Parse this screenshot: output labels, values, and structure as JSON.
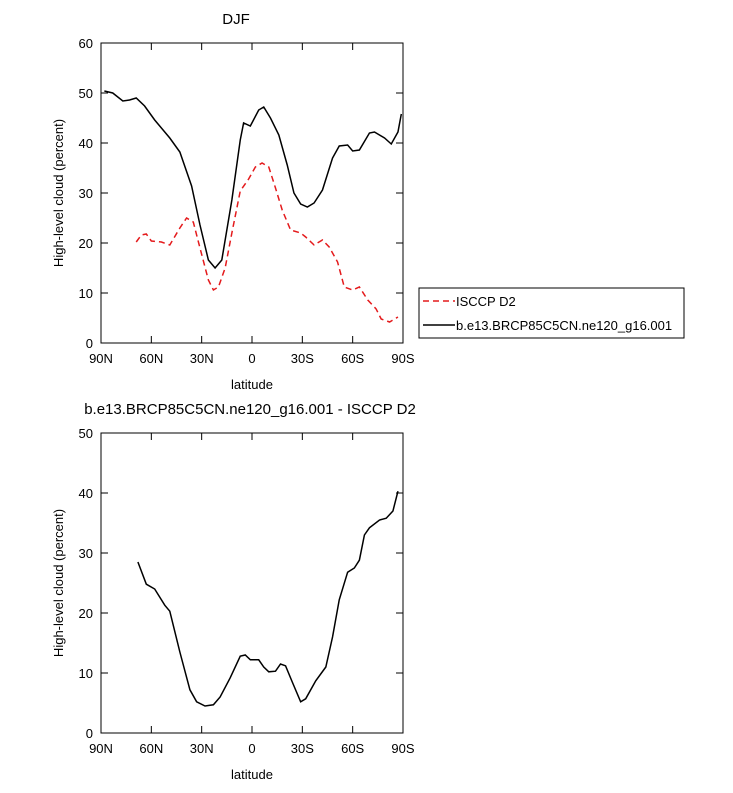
{
  "chart_data": [
    {
      "type": "line",
      "title": "DJF",
      "xlabel": "latitude",
      "ylabel": "High-level cloud (percent)",
      "xlim": [
        90,
        -90
      ],
      "ylim": [
        0,
        60
      ],
      "xticks": [
        {
          "value": 90,
          "label": "90N"
        },
        {
          "value": 60,
          "label": "60N"
        },
        {
          "value": 30,
          "label": "30N"
        },
        0,
        {
          "value": -30,
          "label": "30S"
        },
        {
          "value": -60,
          "label": "60S"
        },
        {
          "value": -90,
          "label": "90S"
        }
      ],
      "yticks": [
        0,
        10,
        20,
        30,
        40,
        50,
        60
      ],
      "legend": "right",
      "series": [
        {
          "name": "ISCCP D2",
          "color": "#e41a1c",
          "dash": true,
          "x": [
            69,
            66,
            63,
            60,
            54,
            49,
            43,
            39,
            35,
            31,
            26,
            23,
            20,
            16,
            12,
            7,
            2,
            -2,
            -6,
            -10,
            -14,
            -18,
            -23,
            -29,
            -32,
            -37,
            -42,
            -46,
            -51,
            -55,
            -60,
            -64,
            -69,
            -74,
            -77,
            -82,
            -87
          ],
          "values": [
            20.2,
            21.6,
            21.8,
            20.4,
            20.2,
            19.6,
            23,
            25,
            24.2,
            19,
            12.6,
            10.6,
            11.2,
            15,
            22,
            30.4,
            32.8,
            35.2,
            36,
            35.2,
            31,
            26.6,
            22.6,
            22,
            21.2,
            19.6,
            20.6,
            19.2,
            16.2,
            11.2,
            10.6,
            11.2,
            8.6,
            6.8,
            4.8,
            4.2,
            5.2
          ]
        },
        {
          "name": "b.e13.BRCP85C5CN.ne120_g16.001",
          "color": "#000000",
          "dash": false,
          "x": [
            88,
            83,
            77,
            73,
            69,
            64,
            58,
            49,
            43,
            36,
            31,
            26,
            22,
            18,
            12,
            7,
            5,
            1,
            -4,
            -7,
            -11,
            -16,
            -21,
            -25,
            -29,
            -33,
            -37,
            -42,
            -48,
            -52,
            -57,
            -60,
            -64,
            -70,
            -73,
            -79,
            -83,
            -87,
            -89
          ],
          "values": [
            50.4,
            50,
            48.4,
            48.6,
            49,
            47.4,
            44.6,
            41,
            38.2,
            31.4,
            23.6,
            16.6,
            15,
            16.6,
            28.6,
            40.6,
            44,
            43.4,
            46.6,
            47.2,
            45,
            41.6,
            35.6,
            30,
            27.8,
            27.2,
            28,
            30.6,
            37,
            39.4,
            39.6,
            38.4,
            38.6,
            42,
            42.2,
            41,
            39.8,
            42.2,
            45.8
          ]
        }
      ]
    },
    {
      "type": "line",
      "title": "b.e13.BRCP85C5CN.ne120_g16.001 - ISCCP D2",
      "xlabel": "latitude",
      "ylabel": "High-level cloud (percent)",
      "xlim": [
        90,
        -90
      ],
      "ylim": [
        0,
        50
      ],
      "xticks": [
        {
          "value": 90,
          "label": "90N"
        },
        {
          "value": 60,
          "label": "60N"
        },
        {
          "value": 30,
          "label": "30N"
        },
        0,
        {
          "value": -30,
          "label": "30S"
        },
        {
          "value": -60,
          "label": "60S"
        },
        {
          "value": -90,
          "label": "90S"
        }
      ],
      "yticks": [
        0,
        10,
        20,
        30,
        40,
        50
      ],
      "series": [
        {
          "color": "#000000",
          "dash": false,
          "x": [
            68,
            63,
            58,
            52,
            49,
            43,
            37,
            33,
            28,
            23,
            19,
            13,
            7,
            4,
            1,
            -4,
            -7,
            -10,
            -14,
            -17,
            -20,
            -24,
            -29,
            -32,
            -38,
            -44,
            -48,
            -52,
            -57,
            -61,
            -64,
            -67,
            -70,
            -76,
            -80,
            -84,
            -87
          ],
          "values": [
            28.5,
            24.8,
            24,
            21.3,
            20.3,
            13.5,
            7.2,
            5.2,
            4.5,
            4.7,
            6,
            9.2,
            12.8,
            13,
            12.2,
            12.2,
            11,
            10.2,
            10.3,
            11.5,
            11.2,
            8.5,
            5.2,
            5.7,
            8.7,
            11,
            16,
            22.2,
            26.8,
            27.5,
            28.8,
            33,
            34.2,
            35.5,
            35.8,
            37,
            40.3
          ]
        }
      ]
    }
  ]
}
